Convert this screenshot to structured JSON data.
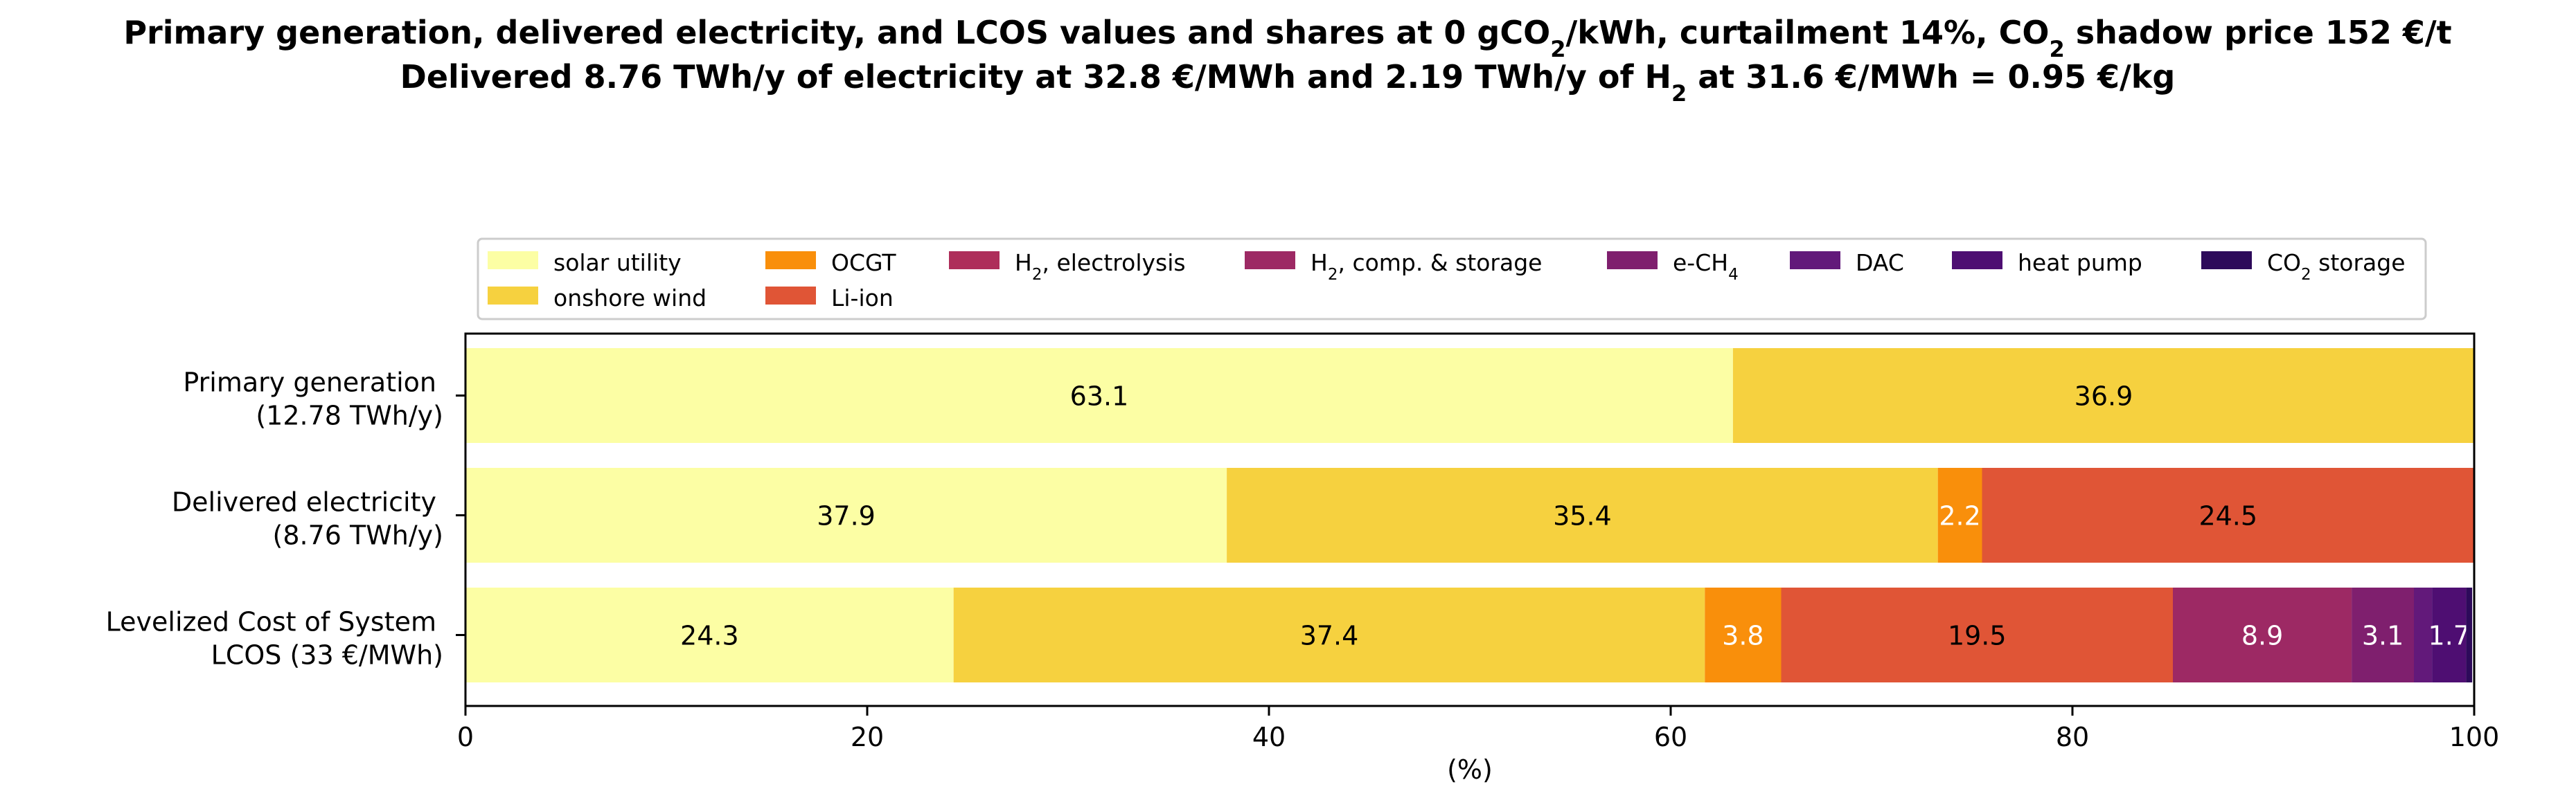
{
  "chart_data": {
    "type": "bar",
    "orientation": "horizontal",
    "stacked": true,
    "title": {
      "line1": [
        {
          "text": "Primary generation, delivered electricity, and LCOS values and shares at 0 gCO"
        },
        {
          "text": "2",
          "sub": true
        },
        {
          "text": "/kWh, curtailment 14%, CO"
        },
        {
          "text": "2",
          "sub": true
        },
        {
          "text": " shadow price 152 €/t"
        }
      ],
      "line2": [
        {
          "text": "Delivered 8.76 TWh/y of electricity at 32.8 €/MWh and 2.19 TWh/y of H"
        },
        {
          "text": "2",
          "sub": true
        },
        {
          "text": " at 31.6 €/MWh = 0.95 €/kg"
        }
      ]
    },
    "xlabel": "(%)",
    "xlim": [
      0,
      100
    ],
    "xticks": [
      0,
      20,
      40,
      60,
      80,
      100
    ],
    "legend_position": "top-center",
    "categories": [
      {
        "line1": "Primary generation",
        "line2": "(12.78 TWh/y)"
      },
      {
        "line1": "Delivered electricity",
        "line2": "(8.76 TWh/y)"
      },
      {
        "line1": "Levelized Cost of System",
        "line2": "LCOS  (33 €/MWh)"
      }
    ],
    "series": [
      {
        "name": [
          {
            "text": "solar utility"
          }
        ],
        "color": "#fcfea4",
        "values": [
          63.1,
          37.9,
          24.3
        ],
        "labels": [
          "63.1",
          "37.9",
          "24.3"
        ],
        "label_color": "#000000"
      },
      {
        "name": [
          {
            "text": "onshore wind"
          }
        ],
        "color": "#f6d13f",
        "values": [
          36.9,
          35.4,
          37.4
        ],
        "labels": [
          "36.9",
          "35.4",
          "37.4"
        ],
        "label_color": "#000000"
      },
      {
        "name": [
          {
            "text": "OCGT"
          }
        ],
        "color": "#f98f0b",
        "values": [
          0,
          2.2,
          3.8
        ],
        "labels": [
          "",
          "2.2",
          "3.8"
        ],
        "label_color": "#ffffff"
      },
      {
        "name": [
          {
            "text": "Li-ion"
          }
        ],
        "color": "#e05536",
        "values": [
          0,
          24.5,
          19.5
        ],
        "labels": [
          "",
          "24.5",
          "19.5"
        ],
        "label_color": "#000000"
      },
      {
        "name": [
          {
            "text": "H"
          },
          {
            "text": "2",
            "sub": true
          },
          {
            "text": ", electrolysis"
          }
        ],
        "color": "#ae2e5a",
        "values": [
          0,
          0,
          0
        ],
        "labels": [
          "",
          "",
          ""
        ],
        "label_color": "#ffffff"
      },
      {
        "name": [
          {
            "text": "H"
          },
          {
            "text": "2",
            "sub": true
          },
          {
            "text": ", comp. & storage"
          }
        ],
        "color": "#9d2964",
        "values": [
          0,
          0,
          8.9
        ],
        "labels": [
          "",
          "",
          "8.9"
        ],
        "label_color": "#ffffff"
      },
      {
        "name": [
          {
            "text": "e-CH"
          },
          {
            "text": "4",
            "sub": true
          }
        ],
        "color": "#7f1f6e",
        "values": [
          0,
          0,
          3.1
        ],
        "labels": [
          "",
          "",
          "3.1"
        ],
        "label_color": "#ffffff"
      },
      {
        "name": [
          {
            "text": "DAC"
          }
        ],
        "color": "#62197a",
        "values": [
          0,
          0,
          0.9
        ],
        "labels": [
          "",
          "",
          ""
        ],
        "label_color": "#ffffff"
      },
      {
        "name": [
          {
            "text": "heat pump"
          }
        ],
        "color": "#4e0e72",
        "values": [
          0,
          0,
          1.7
        ],
        "labels": [
          "",
          "",
          "1.7"
        ],
        "label_color": "#ffffff"
      },
      {
        "name": [
          {
            "text": "CO"
          },
          {
            "text": "2",
            "sub": true
          },
          {
            "text": " storage"
          }
        ],
        "color": "#2d0a5a",
        "values": [
          0,
          0,
          0.3
        ],
        "labels": [
          "",
          "",
          ""
        ],
        "label_color": "#ffffff"
      }
    ]
  }
}
